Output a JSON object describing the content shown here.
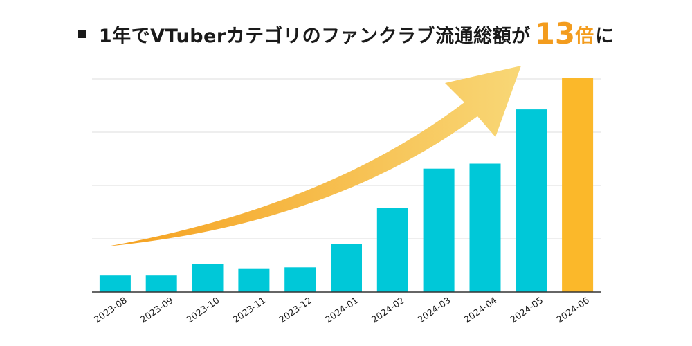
{
  "title": {
    "main": "1年でVTuberカテゴリのファンクラブ流通総額が",
    "multiplier": "13",
    "multiplier_unit": "倍",
    "tail": "に"
  },
  "colors": {
    "bar": "#00c8d8",
    "highlight_bar": "#fbb82a",
    "arrow_start": "#f5a01e",
    "arrow_end": "#f8d776",
    "grid": "#dedede",
    "axis": "#333333",
    "text": "#1a1a1a"
  },
  "icons": {
    "bullet": "square-bullet-icon",
    "arrow": "growth-arrow-icon"
  },
  "chart_data": {
    "type": "bar",
    "title": "1年でVTuberカテゴリのファンクラブ流通総額が13倍に",
    "xlabel": "",
    "ylabel": "",
    "categories": [
      "2023-08",
      "2023-09",
      "2023-10",
      "2023-11",
      "2023-12",
      "2024-01",
      "2024-02",
      "2024-03",
      "2024-04",
      "2024-05",
      "2024-06"
    ],
    "series": [
      {
        "values": [
          1.0,
          1.0,
          1.7,
          1.4,
          1.5,
          2.9,
          5.1,
          7.5,
          7.8,
          11.1,
          13.0
        ]
      }
    ],
    "highlight_index": 10,
    "ylim": [
      0,
      13.5
    ],
    "grid": true,
    "y_tick_labels": false,
    "legend": "none"
  }
}
